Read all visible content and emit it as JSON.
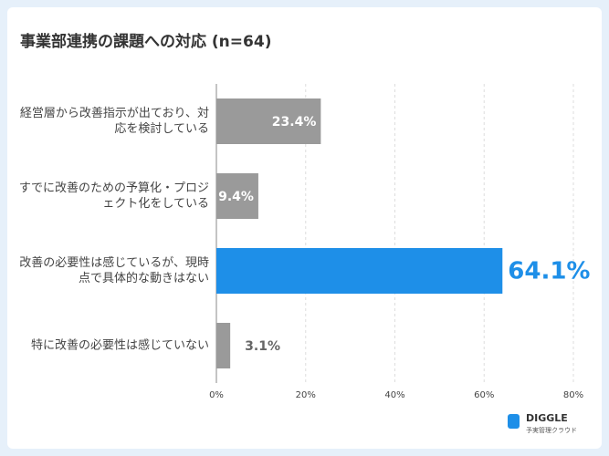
{
  "chart_data": {
    "type": "barh",
    "title": "事業部連携の課題への対応 (n=64)",
    "categories": [
      "経営層から改善指示が出ており、対応を検討している",
      "すでに改善のための予算化・プロジェクト化をしている",
      "改善の必要性は感じているが、現時点で具体的な動きはない",
      "特に改善の必要性は感じていない"
    ],
    "values": [
      23.4,
      9.4,
      64.1,
      3.1
    ],
    "value_labels": [
      "23.4%",
      "9.4%",
      "64.1%",
      "3.1%"
    ],
    "colors": [
      "#9a9a9a",
      "#9a9a9a",
      "#1e8fe8",
      "#9a9a9a"
    ],
    "xlim": [
      0,
      80
    ],
    "xticks": [
      {
        "value": 0,
        "label": "0%"
      },
      {
        "value": 20,
        "label": "20%"
      },
      {
        "value": 40,
        "label": "40%"
      },
      {
        "value": 60,
        "label": "60%"
      },
      {
        "value": 80,
        "label": "80%"
      }
    ],
    "grid": true
  },
  "brand": {
    "name": "DIGGLE",
    "tagline": "予実管理クラウド"
  }
}
